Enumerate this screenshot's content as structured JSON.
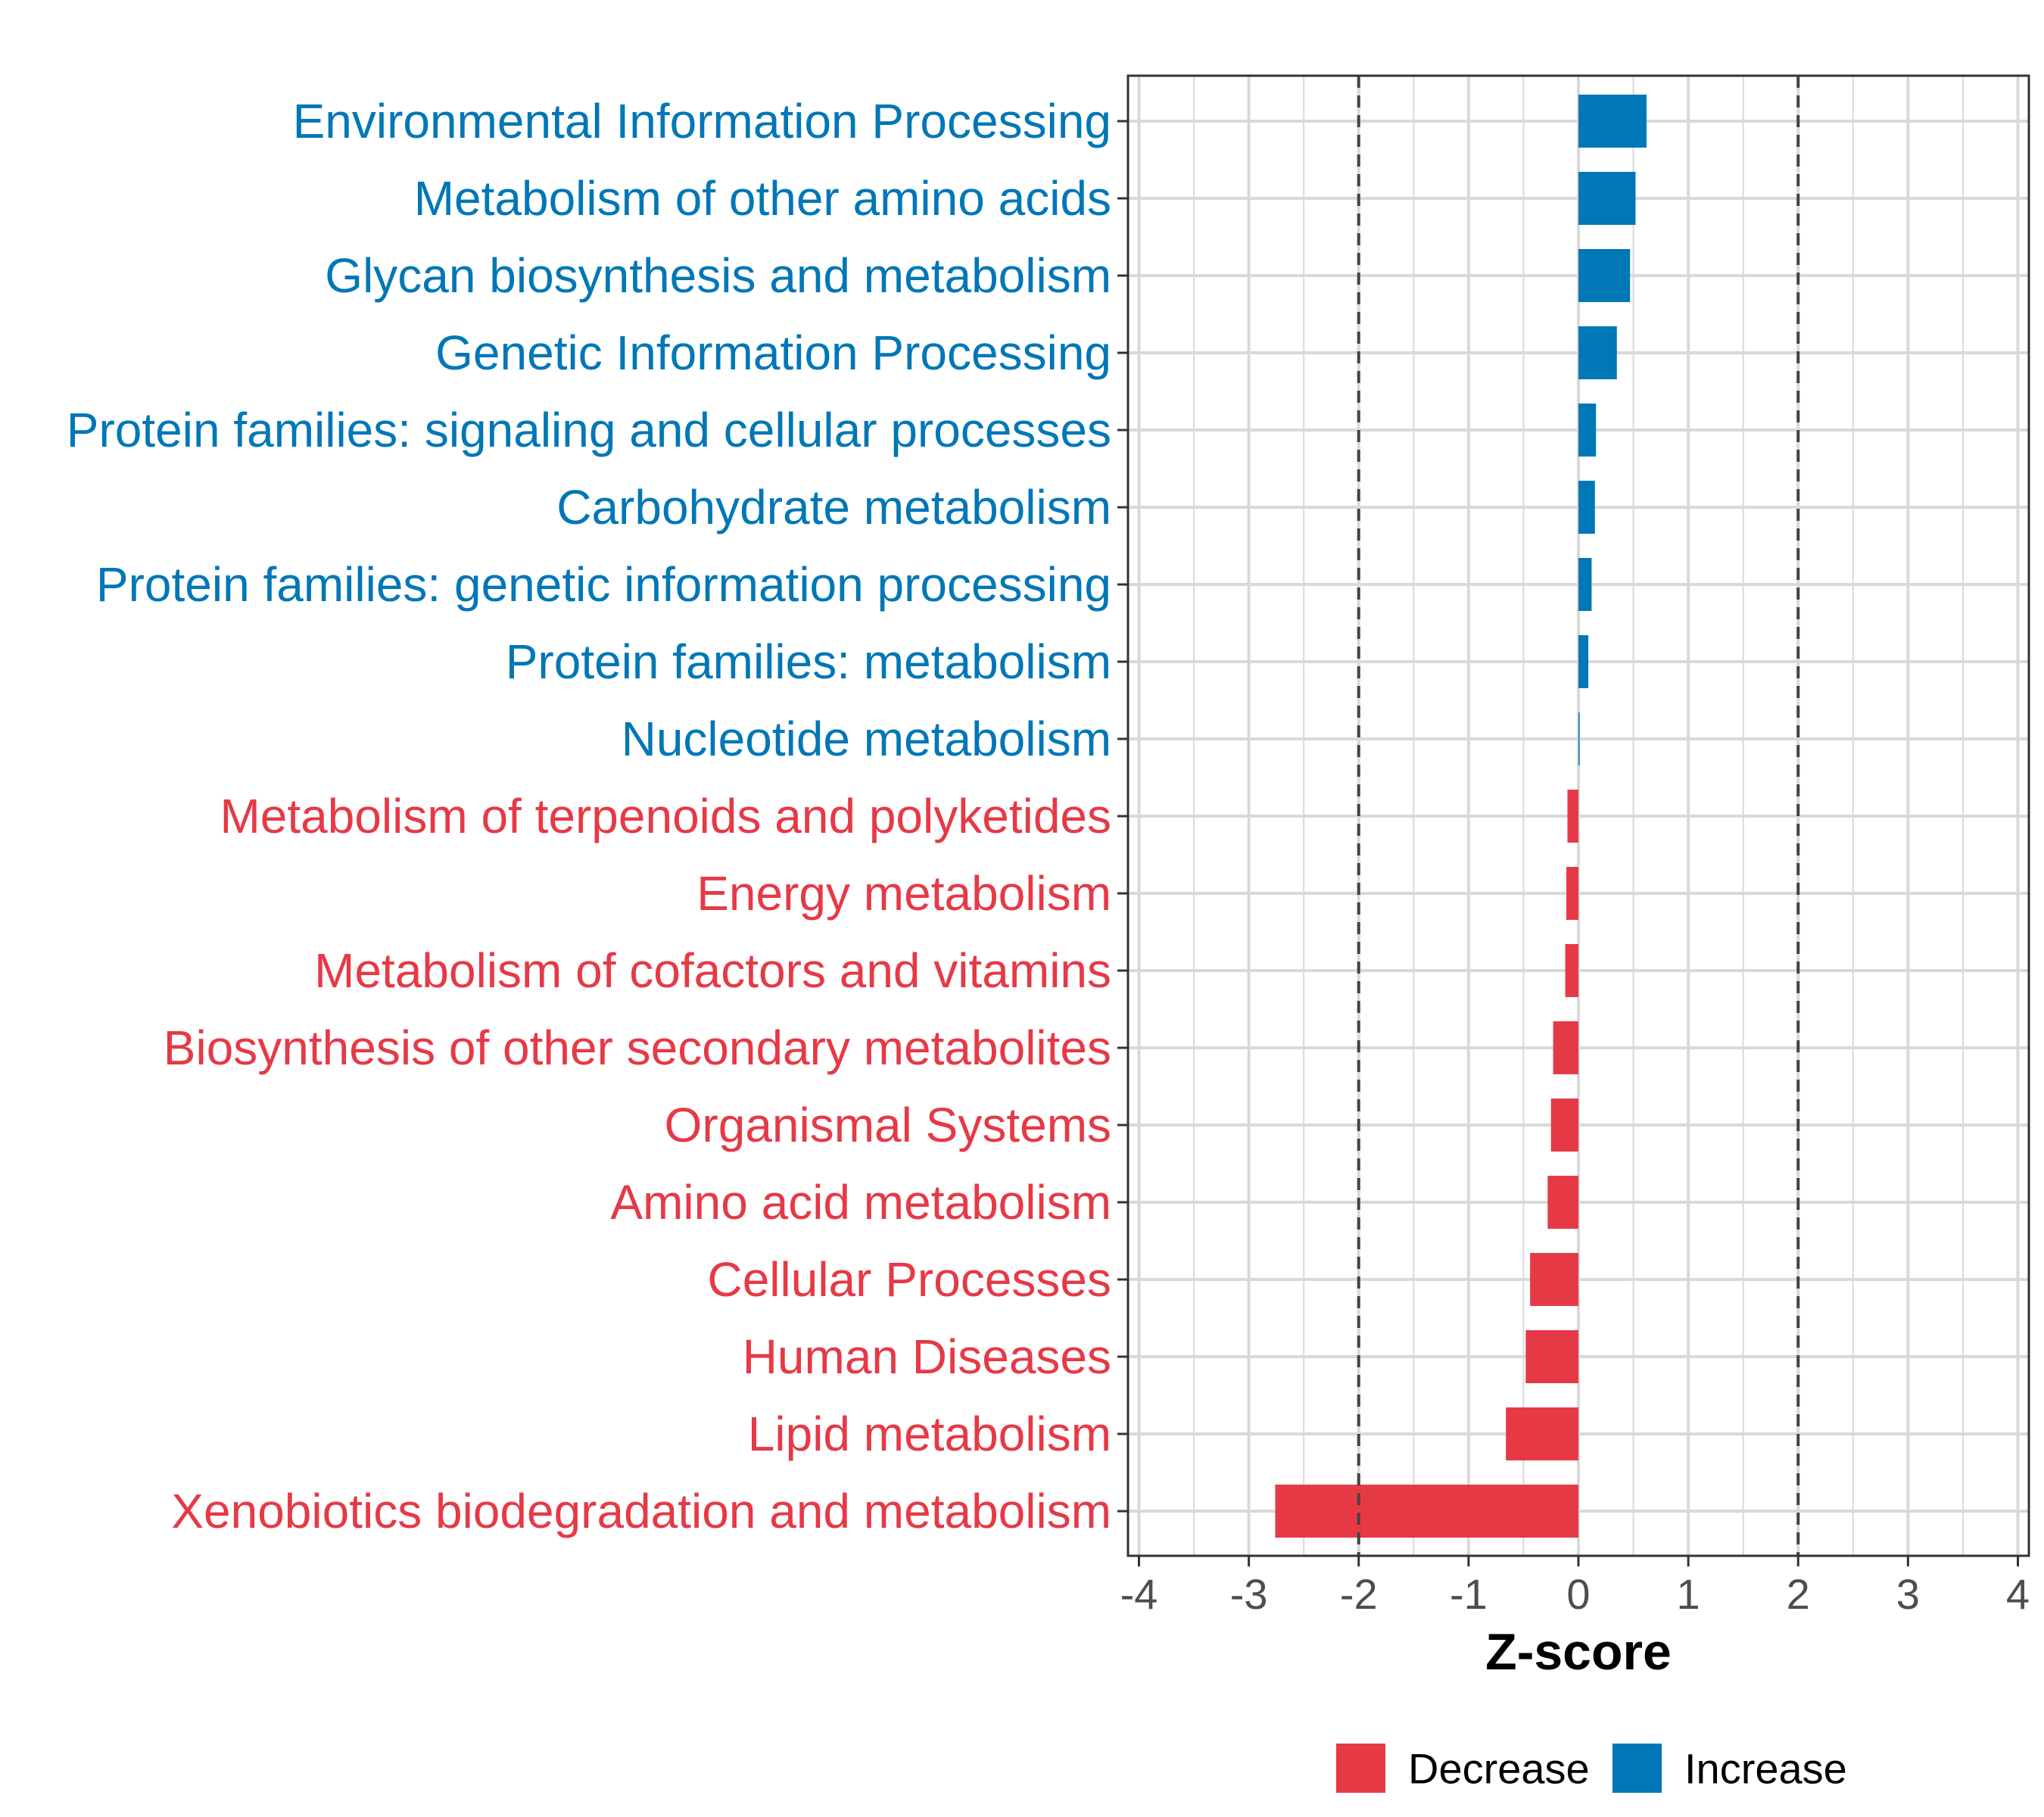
{
  "chart_data": {
    "type": "bar",
    "orientation": "horizontal",
    "title": "",
    "xlabel": "Z-score",
    "ylabel": "",
    "xlim": [
      -4.1,
      4.1
    ],
    "xticks": [
      -4,
      -3,
      -2,
      -1,
      0,
      1,
      2,
      3,
      4
    ],
    "xtick_labels": [
      "-4",
      "-3",
      "-2",
      "-1",
      "0",
      "1",
      "2",
      "3",
      "4"
    ],
    "reference_lines": [
      -2,
      2
    ],
    "grid": true,
    "legend_position": "bottom",
    "colors": {
      "Decrease": "#E63946",
      "Increase": "#0077B6"
    },
    "categories": [
      "Environmental Information Processing",
      "Metabolism of other amino acids",
      "Glycan biosynthesis and metabolism",
      "Genetic Information Processing",
      "Protein families: signaling and cellular processes",
      "Carbohydrate metabolism",
      "Protein families: genetic information processing",
      "Protein families: metabolism",
      "Nucleotide metabolism",
      "Metabolism of terpenoids and polyketides",
      "Energy metabolism",
      "Metabolism of cofactors and vitamins",
      "Biosynthesis of other secondary metabolites",
      "Organismal Systems",
      "Amino acid metabolism",
      "Cellular Processes",
      "Human Diseases",
      "Lipid metabolism",
      "Xenobiotics biodegradation and metabolism"
    ],
    "values": [
      0.62,
      0.52,
      0.47,
      0.35,
      0.16,
      0.15,
      0.12,
      0.09,
      0.01,
      -0.1,
      -0.11,
      -0.12,
      -0.23,
      -0.25,
      -0.28,
      -0.44,
      -0.48,
      -0.66,
      -2.76
    ],
    "groups": [
      "Increase",
      "Increase",
      "Increase",
      "Increase",
      "Increase",
      "Increase",
      "Increase",
      "Increase",
      "Increase",
      "Decrease",
      "Decrease",
      "Decrease",
      "Decrease",
      "Decrease",
      "Decrease",
      "Decrease",
      "Decrease",
      "Decrease",
      "Decrease"
    ],
    "legend": [
      "Decrease",
      "Increase"
    ]
  }
}
